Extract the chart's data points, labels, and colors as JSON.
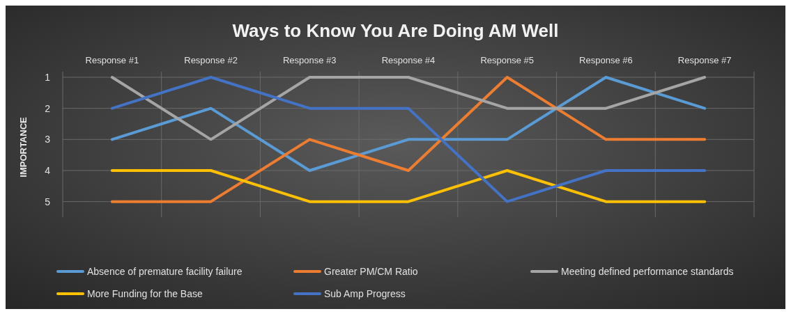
{
  "chart_data": {
    "type": "line",
    "title": "Ways to Know You Are Doing AM Well",
    "ylabel": "IMPORTANCE",
    "categories": [
      "Response #1",
      "Response #2",
      "Response #3",
      "Response #4",
      "Response #5",
      "Response #6",
      "Response #7"
    ],
    "ylim": [
      5.5,
      1
    ],
    "yticks": [
      1,
      2,
      3,
      4,
      5
    ],
    "grid": true,
    "legend": "bottom",
    "marker": "none",
    "line_style": "solid",
    "series": [
      {
        "name": "Absence of premature facility failure",
        "color": "#5b9bd5",
        "values": [
          3,
          2,
          4,
          3,
          3,
          1,
          2
        ]
      },
      {
        "name": "Greater PM/CM Ratio",
        "color": "#ed7d31",
        "values": [
          5,
          5,
          3,
          4,
          1,
          3,
          3
        ]
      },
      {
        "name": "Meeting defined performance standards",
        "color": "#a5a5a5",
        "values": [
          1,
          3,
          1,
          1,
          2,
          2,
          1
        ]
      },
      {
        "name": "More Funding for the Base",
        "color": "#ffc000",
        "values": [
          4,
          4,
          5,
          5,
          4,
          5,
          5
        ]
      },
      {
        "name": "Sub Amp Progress",
        "color": "#4472c4",
        "values": [
          2,
          1,
          2,
          2,
          5,
          4,
          4
        ]
      }
    ]
  }
}
